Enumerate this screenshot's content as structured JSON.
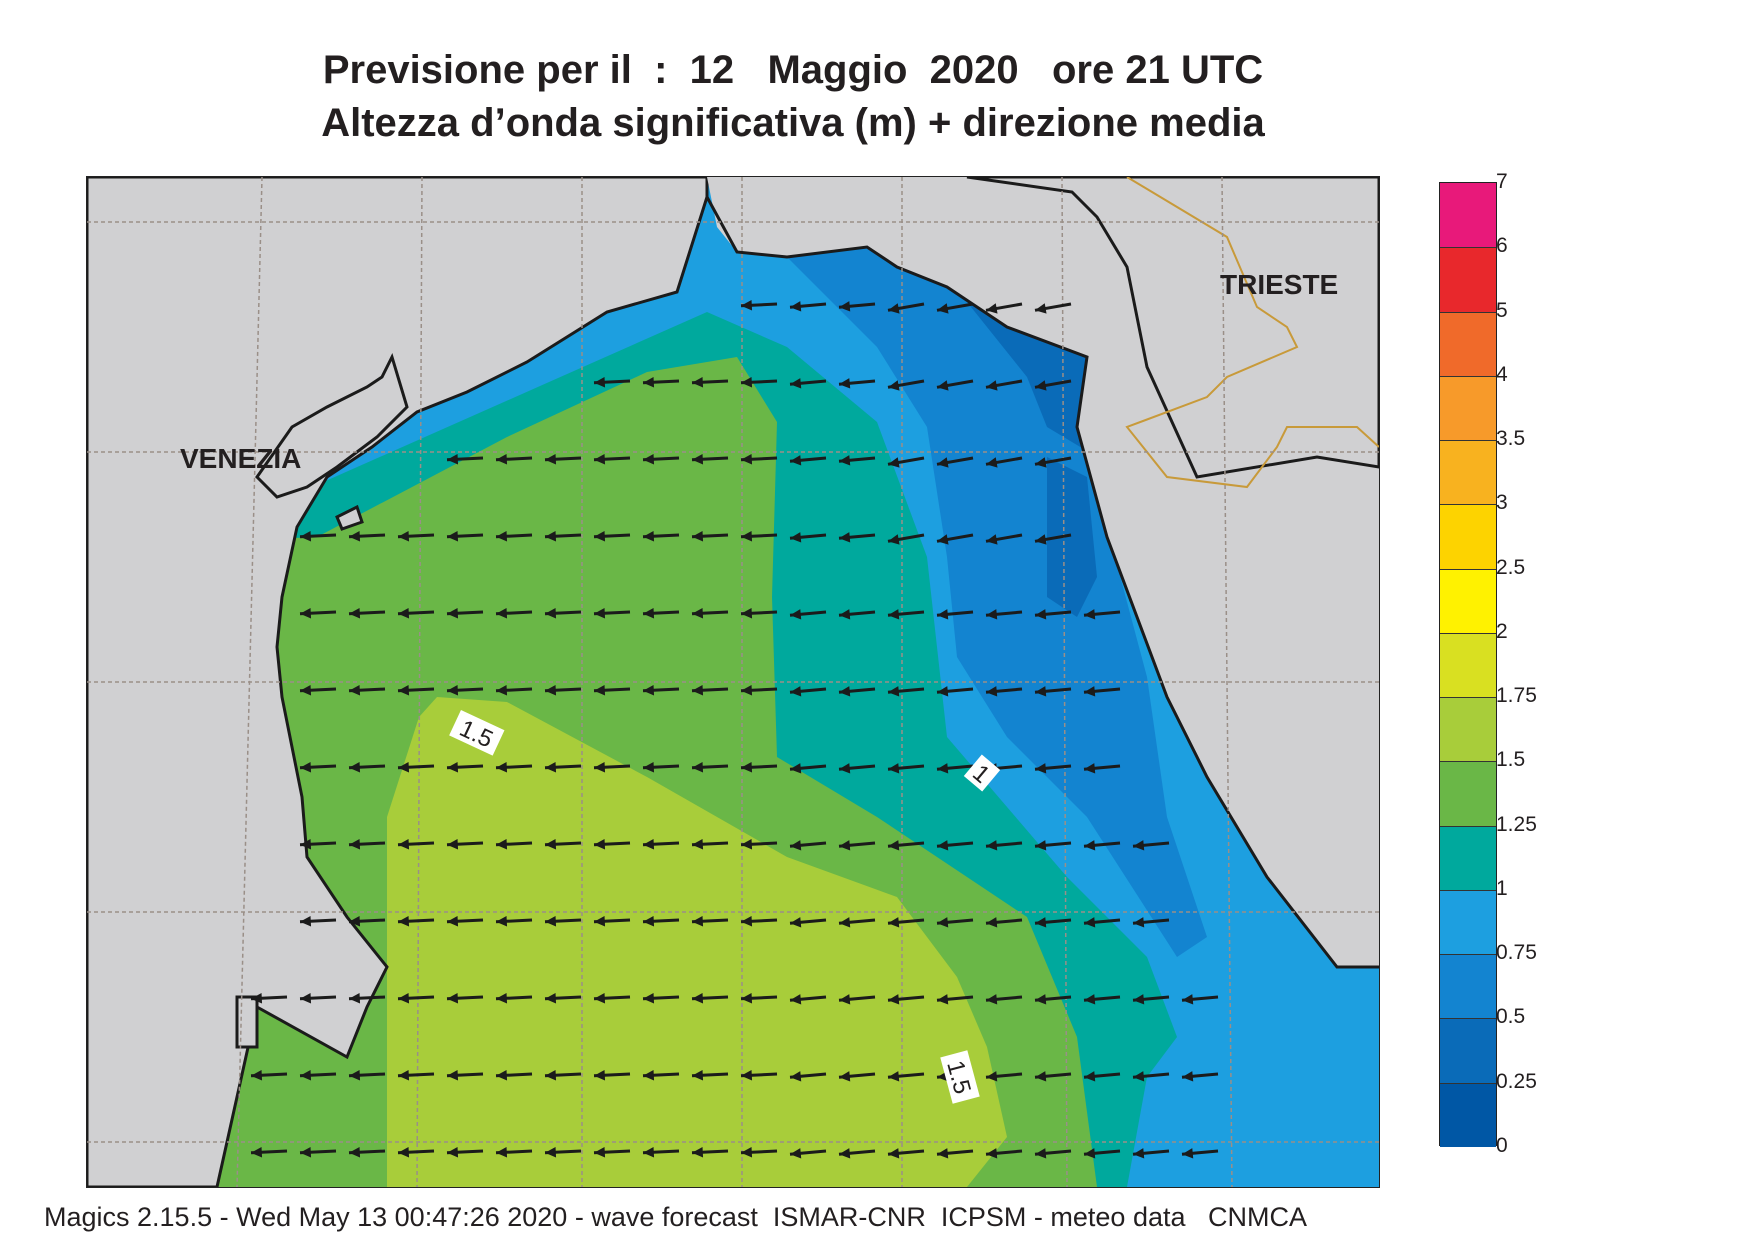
{
  "title": {
    "line1": "Previsione per il  :  12   Maggio  2020   ore 21 UTC",
    "line2": "Altezza d’onda significativa (m) + direzione media"
  },
  "map": {
    "city_labels": [
      "VENEZIA",
      "TRIESTE"
    ],
    "contour_labels": [
      "1.5",
      "1",
      "1.5"
    ],
    "colors": {
      "land": "#d0d0d2",
      "coast": "#1b1b1b",
      "border": "#c89a3a",
      "grid": "#9a8f88",
      "arrow": "#1b1b1b"
    },
    "mean_wave_direction": "toward west (arrows point left, slightly up-left in northeast)"
  },
  "colorbar": {
    "labels": [
      "7",
      "6",
      "5",
      "4",
      "3.5",
      "3",
      "2.5",
      "2",
      "1.75",
      "1.5",
      "1.25",
      "1",
      "0.75",
      "0.5",
      "0.25",
      "0"
    ],
    "colors_top_to_bottom": [
      "#e8197a",
      "#e8282c",
      "#f06a2a",
      "#f79a2a",
      "#f8b21f",
      "#fdd300",
      "#fff200",
      "#d9e021",
      "#a8cd3a",
      "#6ab747",
      "#00a99d",
      "#1d9fe0",
      "#1384d0",
      "#0a6bb8",
      "#0057a5"
    ]
  },
  "footer": "Magics 2.15.5 - Wed May 13 00:47:26 2020 - wave forecast  ISMAR-CNR  ICPSM - meteo data   CNMCA"
}
